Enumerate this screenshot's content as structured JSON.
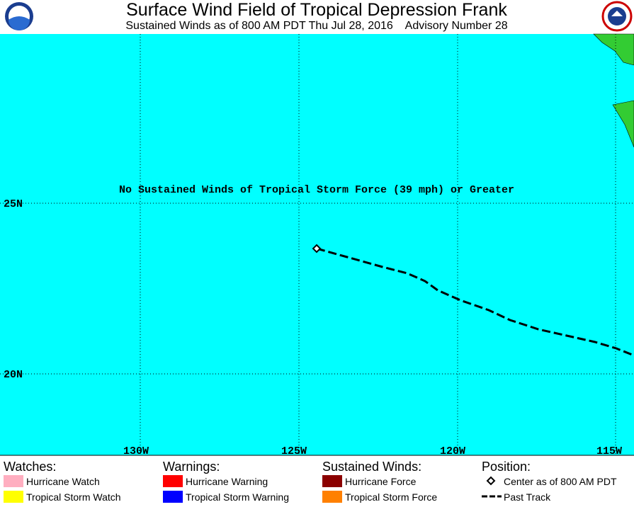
{
  "header": {
    "title": "Surface Wind Field of Tropical Depression Frank",
    "subtitle": "Sustained Winds as of 800 AM PDT Thu Jul 28, 2016    Advisory Number 28"
  },
  "map": {
    "message": "No Sustained Winds of Tropical Storm Force (39 mph) or Greater",
    "lat_labels": [
      "25N",
      "20N"
    ],
    "lon_labels": [
      "130W",
      "125W",
      "120W",
      "115W"
    ]
  },
  "legend": {
    "columns": [
      {
        "heading": "Watches:",
        "items": [
          "Hurricane Watch",
          "Tropical Storm Watch"
        ]
      },
      {
        "heading": "Warnings:",
        "items": [
          "Hurricane Warning",
          "Tropical Storm Warning"
        ]
      },
      {
        "heading": "Sustained Winds:",
        "items": [
          "Hurricane Force",
          "Tropical Storm Force"
        ]
      },
      {
        "heading": "Position:",
        "items": [
          "Center as of 800 AM PDT",
          "Past Track"
        ]
      }
    ]
  }
}
